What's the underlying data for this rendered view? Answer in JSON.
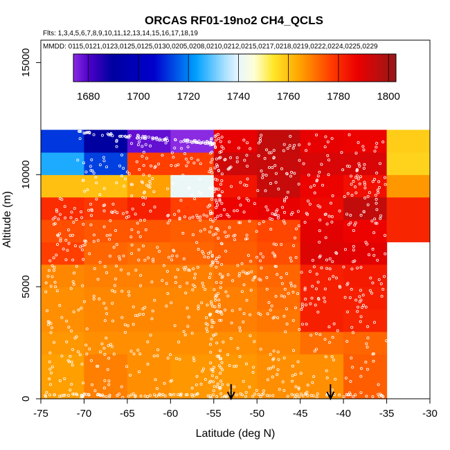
{
  "chart_data": {
    "type": "heatmap",
    "title": "ORCAS RF01-19no2 CH4_QCLS",
    "flights_text": "Flts: 1,3,4,5,6,7,8,9,10,11,12,13,14,15,16,17,18,19",
    "dates_text": "MMDD: 0115,0121,0123,0125,0125,0130,0205,0208,0210,0212,0215,0217,0218,0219,0222,0224,0225,0229",
    "xlabel": "Latitude (deg N)",
    "ylabel": "Altitude (m)",
    "xlim": [
      -75,
      -30
    ],
    "ylim": [
      0,
      16000
    ],
    "x_ticks": [
      -75,
      -70,
      -65,
      -60,
      -55,
      -50,
      -45,
      -40,
      -35,
      -30
    ],
    "y_ticks": [
      0,
      5000,
      10000,
      15000
    ],
    "lat_bin_edges": [
      -75,
      -70,
      -65,
      -60,
      -55,
      -50,
      -45,
      -40,
      -35
    ],
    "lat_bin_edges_top": [
      -75,
      -70,
      -65,
      -60,
      -55,
      -50,
      -45,
      -40,
      -35,
      -30
    ],
    "alt_bin_edges": [
      0,
      2000,
      3000,
      4000,
      5000,
      6000,
      7000,
      8000,
      9000,
      10000,
      11000,
      12000
    ],
    "values": [
      [
        1765,
        1769,
        1767,
        1766,
        1766,
        1767,
        1767,
        1773
      ],
      [
        1766,
        1767,
        1767,
        1767,
        1767,
        1768,
        1771,
        1772
      ],
      [
        1767,
        1768,
        1768,
        1768,
        1769,
        1770,
        1782,
        1781
      ],
      [
        1767,
        1768,
        1768,
        1768,
        1769,
        1771,
        1782,
        1782
      ],
      [
        1768,
        1769,
        1769,
        1769,
        1770,
        1772,
        1782,
        1783
      ],
      [
        1777,
        1772,
        1771,
        1772,
        1773,
        1775,
        1790,
        1789
      ],
      [
        1775,
        1774,
        1774,
        1773,
        1774,
        1776,
        1789,
        1787
      ],
      [
        1780,
        1778,
        1782,
        1777,
        1787,
        1788,
        1786,
        1795
      ],
      [
        1760,
        1760,
        1765,
        1741,
        1784,
        1794,
        1787,
        1785
      ],
      [
        1725,
        1713,
        1777,
        1777,
        1793,
        1794,
        1791,
        1791
      ],
      [
        1712,
        1690,
        1678,
        1672,
        1788,
        1795,
        1788,
        1787
      ]
    ],
    "values_top_extra": {
      "lat_bin": [
        -35,
        -30
      ],
      "alt_bins": [
        [
          7000,
          8000
        ],
        [
          8000,
          9000
        ],
        [
          9000,
          10000
        ],
        [
          10000,
          11000
        ],
        [
          11000,
          12000
        ]
      ],
      "values": [
        1781,
        1781,
        1766,
        1757,
        1758
      ]
    },
    "colorbar": {
      "min": 1674,
      "max": 1803,
      "ticks": [
        1680,
        1700,
        1720,
        1740,
        1760,
        1780,
        1800
      ],
      "tick_labels": [
        "1680",
        "1700",
        "1720",
        "1740",
        "1760",
        "1780",
        "1800"
      ]
    },
    "arrow_latitudes": [
      -53,
      -41.5
    ]
  }
}
